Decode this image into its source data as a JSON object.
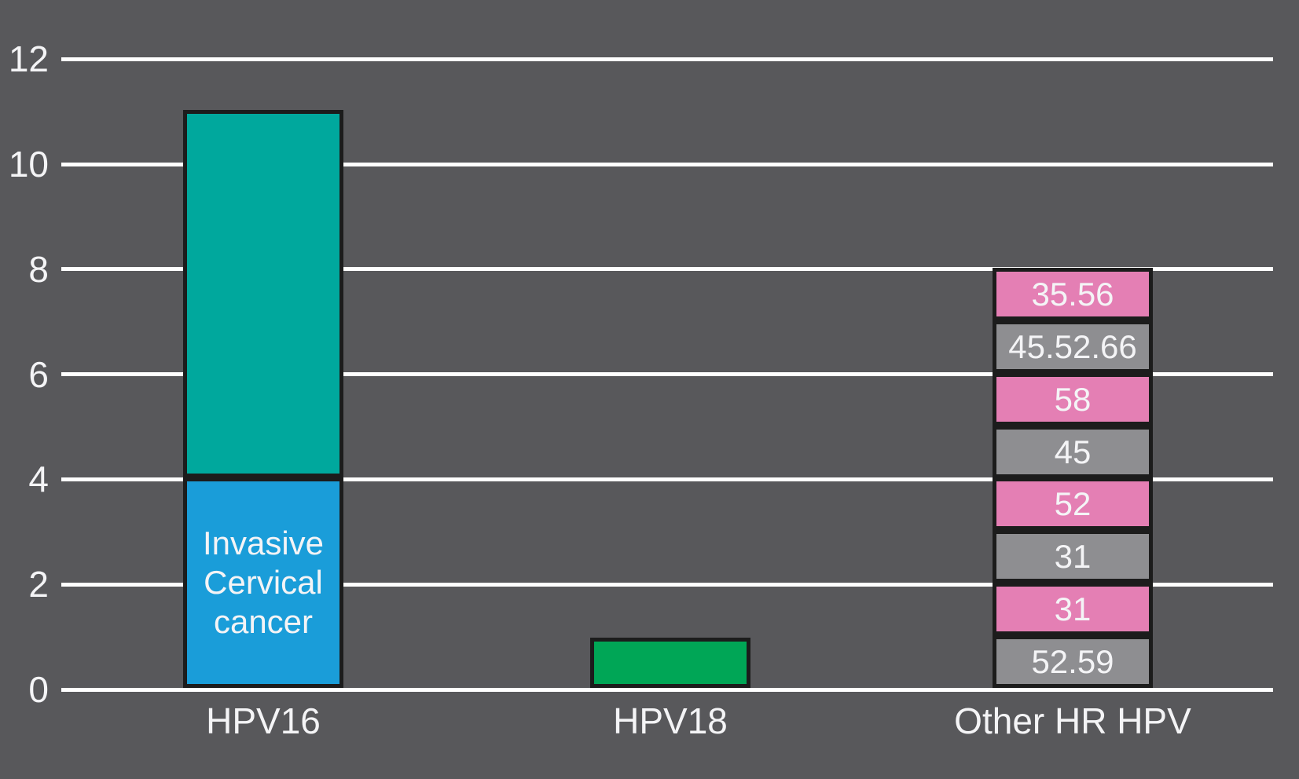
{
  "colors": {
    "background": "#58585b",
    "grid": "#ffffff",
    "text": "#f4f4f6",
    "bar_border": "#1c1c1c",
    "hpv16_bottom_blue": "#1a9dd9",
    "hpv16_top_teal": "#00a89d",
    "hpv18_green": "#00a656",
    "other_pink": "#e47fb4",
    "other_gray": "#8e8e91"
  },
  "chart_data": {
    "type": "bar",
    "stacked": true,
    "orientation": "vertical",
    "title": "",
    "xlabel": "",
    "ylabel": "",
    "grid": true,
    "legend": false,
    "ylim": [
      0,
      12
    ],
    "yticks": [
      0,
      2,
      4,
      6,
      8,
      10,
      12
    ],
    "categories": [
      "HPV16",
      "HPV18",
      "Other HR HPV"
    ],
    "bars": [
      {
        "category": "HPV16",
        "total": 11.0,
        "segments": [
          {
            "label": "Invasive Cervical cancer",
            "label_lines": [
              "Invasive",
              "Cervical",
              "cancer"
            ],
            "value": 4.0,
            "color": "#1a9dd9"
          },
          {
            "label": "",
            "value": 7.0,
            "color": "#00a89d"
          }
        ]
      },
      {
        "category": "HPV18",
        "total": 0.95,
        "segments": [
          {
            "label": "",
            "value": 0.95,
            "color": "#00a656"
          }
        ]
      },
      {
        "category": "Other HR HPV",
        "total": 8.0,
        "segments": [
          {
            "label": "52.59",
            "value": 1.0,
            "color": "#8e8e91"
          },
          {
            "label": "31",
            "value": 1.0,
            "color": "#e47fb4"
          },
          {
            "label": "31",
            "value": 1.0,
            "color": "#8e8e91"
          },
          {
            "label": "52",
            "value": 1.0,
            "color": "#e47fb4"
          },
          {
            "label": "45",
            "value": 1.0,
            "color": "#8e8e91"
          },
          {
            "label": "58",
            "value": 1.0,
            "color": "#e47fb4"
          },
          {
            "label": "45.52.66",
            "value": 1.0,
            "color": "#8e8e91"
          },
          {
            "label": "35.56",
            "value": 1.0,
            "color": "#e47fb4"
          }
        ]
      }
    ]
  }
}
